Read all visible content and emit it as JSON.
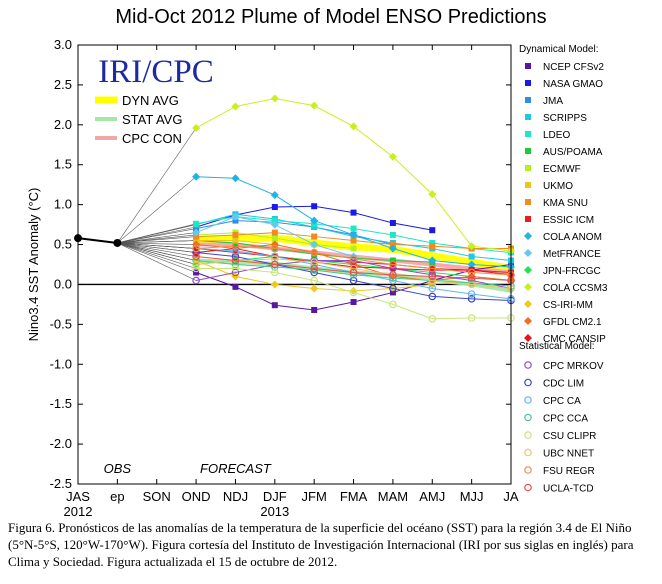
{
  "chart_data": {
    "type": "line",
    "title": "Mid-Oct 2012 Plume of Model ENSO Predictions",
    "ylabel": "Nino3.4 SST Anomaly (°C)",
    "ylim": [
      -2.5,
      3.0
    ],
    "yticks": [
      "3.0",
      "2.5",
      "2.0",
      "1.5",
      "1.0",
      "0.5",
      "0.0",
      "-0.5",
      "-1.0",
      "-1.5",
      "-2.0",
      "-2.5"
    ],
    "categories": [
      "JAS",
      "ep",
      "SON",
      "OND",
      "NDJ",
      "DJF",
      "JFM",
      "FMA",
      "MAM",
      "AMJ",
      "MJJ",
      "JA"
    ],
    "sub_labels": {
      "JAS": "2012",
      "DJF": "2013"
    },
    "annotations": {
      "obs": "OBS",
      "forecast": "FORECAST",
      "logo": "IRI/CPC"
    },
    "observed": [
      0.58,
      0.52
    ],
    "average_lines": [
      {
        "name": "DYN AVG",
        "color": "#ffff00",
        "values": [
          null,
          null,
          null,
          0.55,
          0.58,
          0.58,
          0.52,
          0.47,
          0.44,
          0.36,
          0.28,
          0.2
        ]
      },
      {
        "name": "STAT AVG",
        "color": "#a8e6a8",
        "values": [
          null,
          null,
          null,
          0.3,
          0.28,
          0.26,
          0.2,
          0.15,
          0.12,
          0.06,
          0.0,
          -0.08
        ]
      },
      {
        "name": "CPC CON",
        "color": "#f4a6a6",
        "values": [
          null,
          null,
          null,
          0.5,
          0.5,
          0.45,
          0.4,
          0.35,
          0.3,
          0.25,
          0.2,
          0.15
        ]
      }
    ],
    "legend_heading_dynamical": "Dynamical Model:",
    "legend_heading_statistical": "Statistical Model:",
    "series": [
      {
        "name": "NCEP CFSv2",
        "group": "dynamical",
        "marker": "square",
        "color": "#5a16a0",
        "values": [
          null,
          null,
          null,
          0.15,
          -0.03,
          -0.26,
          -0.32,
          -0.22,
          -0.1,
          0.05,
          0.18,
          0.25
        ]
      },
      {
        "name": "NASA GMAO",
        "group": "dynamical",
        "marker": "square",
        "color": "#1a1ae6",
        "values": [
          null,
          null,
          null,
          0.72,
          0.87,
          0.97,
          0.98,
          0.9,
          0.77,
          0.68,
          null,
          null
        ]
      },
      {
        "name": "JMA",
        "group": "dynamical",
        "marker": "square",
        "color": "#2e8fe0",
        "values": [
          null,
          null,
          null,
          0.7,
          0.8,
          0.78,
          0.72,
          0.62,
          0.5,
          null,
          null,
          null
        ]
      },
      {
        "name": "SCRIPPS",
        "group": "dynamical",
        "marker": "square",
        "color": "#1ec8e6",
        "values": [
          null,
          null,
          null,
          0.75,
          0.88,
          0.82,
          0.72,
          0.6,
          0.52,
          0.45,
          0.35,
          0.3
        ]
      },
      {
        "name": "LDEO",
        "group": "dynamical",
        "marker": "square",
        "color": "#20e6c8",
        "values": [
          null,
          null,
          null,
          0.76,
          0.85,
          0.8,
          0.76,
          0.7,
          0.62,
          0.52,
          0.45,
          0.4
        ]
      },
      {
        "name": "AUS/POAMA",
        "group": "dynamical",
        "marker": "square",
        "color": "#1ec83c",
        "values": [
          null,
          null,
          null,
          0.55,
          0.52,
          0.45,
          0.38,
          0.33,
          0.3,
          0.28,
          null,
          null
        ]
      },
      {
        "name": "ECMWF",
        "group": "dynamical",
        "marker": "square",
        "color": "#b4f01e",
        "values": [
          null,
          null,
          null,
          0.62,
          0.65,
          0.58,
          0.5,
          0.45,
          null,
          null,
          null,
          null
        ]
      },
      {
        "name": "UKMO",
        "group": "dynamical",
        "marker": "square",
        "color": "#e6c81e",
        "values": [
          null,
          null,
          null,
          0.55,
          0.55,
          0.5,
          null,
          null,
          null,
          null,
          null,
          null
        ]
      },
      {
        "name": "KMA SNU",
        "group": "dynamical",
        "marker": "square",
        "color": "#f08c1e",
        "values": [
          null,
          null,
          null,
          0.6,
          0.62,
          0.65,
          0.6,
          0.55,
          0.5,
          0.48,
          0.45,
          0.45
        ]
      },
      {
        "name": "ESSIC ICM",
        "group": "dynamical",
        "marker": "square",
        "color": "#e61e1e",
        "values": [
          null,
          null,
          null,
          0.45,
          0.4,
          0.35,
          0.3,
          0.28,
          0.25,
          0.2,
          0.18,
          0.15
        ]
      },
      {
        "name": "COLA ANOM",
        "group": "dynamical",
        "marker": "diamond",
        "color": "#1eb4e6",
        "values": [
          null,
          null,
          null,
          1.35,
          1.33,
          1.12,
          0.8,
          0.62,
          0.45,
          0.3,
          0.25,
          0.22
        ]
      },
      {
        "name": "MetFRANCE",
        "group": "dynamical",
        "marker": "diamond",
        "color": "#64c8f0",
        "values": [
          null,
          null,
          null,
          0.65,
          0.85,
          0.75,
          0.5,
          0.35,
          null,
          null,
          null,
          null
        ]
      },
      {
        "name": "JPN-FRCGC",
        "group": "dynamical",
        "marker": "diamond",
        "color": "#1ee650",
        "values": [
          null,
          null,
          null,
          0.25,
          0.3,
          0.35,
          0.3,
          0.25,
          0.2,
          0.15,
          0.1,
          0.05
        ]
      },
      {
        "name": "COLA CCSM3",
        "group": "dynamical",
        "marker": "diamond",
        "color": "#c8f01e",
        "values": [
          null,
          null,
          null,
          1.96,
          2.23,
          2.33,
          2.24,
          1.98,
          1.6,
          1.13,
          0.48,
          0.42
        ]
      },
      {
        "name": "CS-IRI-MM",
        "group": "dynamical",
        "marker": "diamond",
        "color": "#f0c81e",
        "values": [
          null,
          null,
          null,
          0.3,
          0.1,
          0.0,
          -0.05,
          -0.08,
          -0.05,
          0.0,
          null,
          null
        ]
      },
      {
        "name": "GFDL CM2.1",
        "group": "dynamical",
        "marker": "diamond",
        "color": "#f06e1e",
        "values": [
          null,
          null,
          null,
          0.5,
          0.45,
          0.5,
          0.4,
          0.25,
          0.1,
          0.05,
          0.1,
          0.05
        ]
      },
      {
        "name": "CMC CANSIP",
        "group": "dynamical",
        "marker": "diamond",
        "color": "#e6141e",
        "values": [
          null,
          null,
          null,
          0.4,
          0.45,
          0.35,
          0.28,
          0.22,
          0.2,
          0.18,
          0.18,
          0.12
        ]
      },
      {
        "name": "CPC MRKOV",
        "group": "statistical",
        "marker": "circle",
        "color": "#8c4cc8",
        "values": [
          null,
          null,
          null,
          0.05,
          0.15,
          0.25,
          0.3,
          0.3,
          0.2,
          0.12,
          0.05,
          -0.05
        ]
      },
      {
        "name": "CDC LIM",
        "group": "statistical",
        "marker": "circle",
        "color": "#3c46c8",
        "values": [
          null,
          null,
          null,
          0.4,
          0.35,
          0.25,
          0.15,
          0.05,
          -0.05,
          -0.15,
          -0.18,
          -0.2
        ]
      },
      {
        "name": "CPC CA",
        "group": "statistical",
        "marker": "circle",
        "color": "#64b4f0",
        "values": [
          null,
          null,
          null,
          0.45,
          0.42,
          0.35,
          0.25,
          0.15,
          0.05,
          -0.05,
          -0.12,
          -0.18
        ]
      },
      {
        "name": "CPC CCA",
        "group": "statistical",
        "marker": "circle",
        "color": "#46c88c",
        "values": [
          null,
          null,
          null,
          0.3,
          0.25,
          0.22,
          0.18,
          0.12,
          0.08,
          0.05,
          0.02,
          -0.02
        ]
      },
      {
        "name": "CSU CLIPR",
        "group": "statistical",
        "marker": "circle",
        "color": "#c8e678",
        "values": [
          null,
          null,
          null,
          0.2,
          0.2,
          0.15,
          0.05,
          -0.1,
          -0.25,
          -0.43,
          -0.42,
          -0.42
        ]
      },
      {
        "name": "UBC NNET",
        "group": "statistical",
        "marker": "circle",
        "color": "#e6c864",
        "values": [
          null,
          null,
          null,
          0.25,
          0.3,
          0.32,
          0.28,
          0.2,
          0.12,
          0.05,
          0.0,
          -0.05
        ]
      },
      {
        "name": "FSU REGR",
        "group": "statistical",
        "marker": "circle",
        "color": "#f08c46",
        "values": [
          null,
          null,
          null,
          0.45,
          0.48,
          0.45,
          0.4,
          0.32,
          0.25,
          0.2,
          0.15,
          0.12
        ]
      },
      {
        "name": "UCLA-TCD",
        "group": "statistical",
        "marker": "circle",
        "color": "#e65050",
        "values": [
          null,
          null,
          null,
          0.35,
          0.3,
          0.25,
          0.2,
          0.15,
          0.12,
          0.1,
          0.08,
          0.05
        ]
      }
    ]
  },
  "caption": "Figura 6. Pronósticos de las anomalías de la temperatura de la superficie del océano (SST) para la región 3.4 de El Niño (5°N-5°S, 120°W-170°W). Figura cortesía del Instituto de Investigación Internacional (IRI por sus siglas en inglés) para Clima y Sociedad. Figura actualizada el 15 de octubre de 2012."
}
